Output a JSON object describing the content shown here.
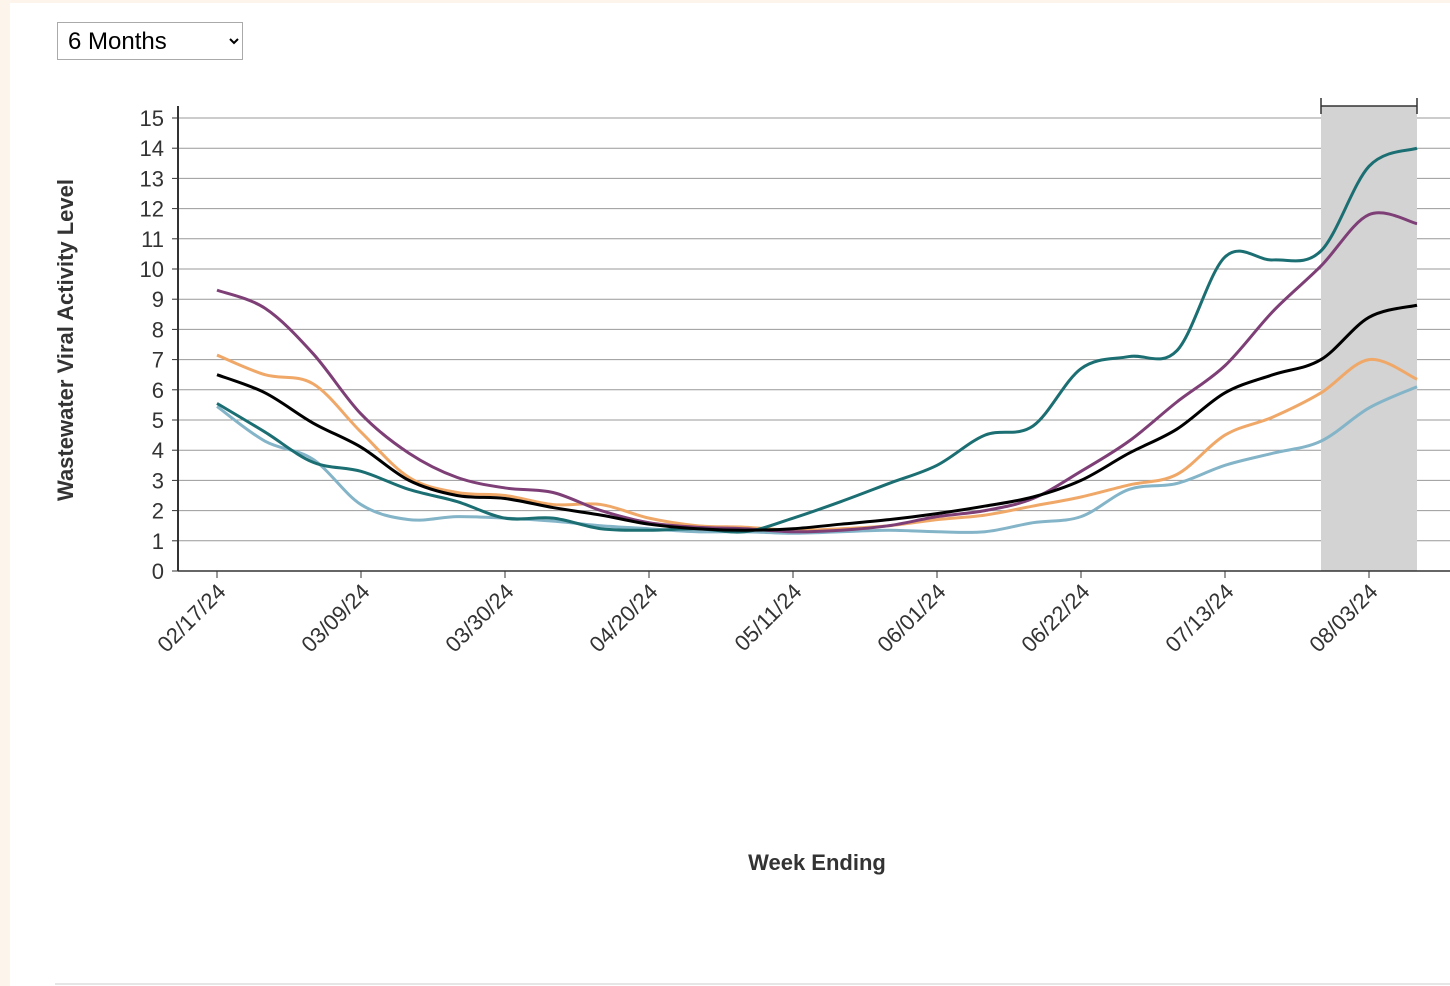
{
  "range_select": {
    "selected": "6 Months"
  },
  "chart_data": {
    "type": "line",
    "ylabel": "Wastewater Viral Activity Level",
    "xlabel": "Week Ending",
    "categories": [
      "02/17/24",
      null,
      null,
      "03/09/24",
      null,
      null,
      "03/30/24",
      null,
      null,
      "04/20/24",
      null,
      null,
      "05/11/24",
      null,
      null,
      "06/01/24",
      null,
      null,
      "06/22/24",
      null,
      null,
      "07/13/24",
      null,
      null,
      "08/03/24",
      null
    ],
    "series": [
      {
        "color": "#84b4c8",
        "values": [
          5.45,
          4.3,
          3.7,
          2.2,
          1.7,
          1.8,
          1.75,
          1.65,
          1.5,
          1.4,
          1.3,
          1.3,
          1.25,
          1.3,
          1.35,
          1.3,
          1.3,
          1.6,
          1.8,
          2.7,
          2.9,
          3.5,
          3.9,
          4.3,
          5.4,
          6.1
        ]
      },
      {
        "color": "#f0a868",
        "values": [
          7.15,
          6.5,
          6.2,
          4.6,
          3.1,
          2.6,
          2.5,
          2.2,
          2.2,
          1.75,
          1.5,
          1.45,
          1.35,
          1.4,
          1.5,
          1.7,
          1.85,
          2.15,
          2.45,
          2.85,
          3.2,
          4.5,
          5.1,
          5.9,
          7.0,
          6.35
        ]
      },
      {
        "color": "#7e3f77",
        "values": [
          9.3,
          8.7,
          7.2,
          5.2,
          3.9,
          3.1,
          2.75,
          2.6,
          2.0,
          1.6,
          1.45,
          1.4,
          1.3,
          1.35,
          1.5,
          1.8,
          2.0,
          2.4,
          3.3,
          4.3,
          5.6,
          6.8,
          8.6,
          10.1,
          11.8,
          11.5
        ]
      },
      {
        "color": "#1b6e72",
        "values": [
          5.55,
          4.6,
          3.6,
          3.3,
          2.7,
          2.3,
          1.75,
          1.75,
          1.4,
          1.35,
          1.4,
          1.3,
          1.75,
          2.3,
          2.9,
          3.5,
          4.5,
          4.8,
          6.7,
          7.1,
          7.3,
          10.4,
          10.3,
          10.6,
          13.4,
          14.0
        ]
      },
      {
        "color": "#000000",
        "values": [
          6.5,
          5.9,
          4.9,
          4.1,
          3.0,
          2.5,
          2.4,
          2.1,
          1.85,
          1.55,
          1.4,
          1.35,
          1.4,
          1.55,
          1.7,
          1.9,
          2.15,
          2.45,
          3.0,
          3.9,
          4.7,
          5.9,
          6.5,
          7.0,
          8.4,
          8.8
        ]
      }
    ],
    "ylim": [
      0,
      15
    ],
    "yticks": [
      0,
      1,
      2,
      3,
      4,
      5,
      6,
      7,
      8,
      9,
      10,
      11,
      12,
      13,
      14,
      15
    ],
    "grid": true
  }
}
